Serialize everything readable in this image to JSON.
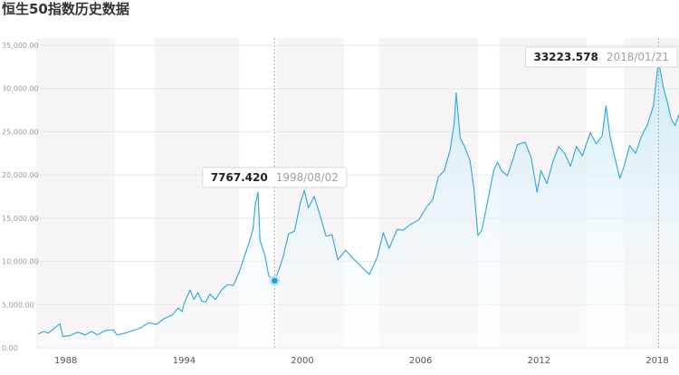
{
  "chart_data": {
    "type": "area",
    "title": "恒生50指数历史数据",
    "xlabel": "",
    "ylabel": "",
    "ylim": [
      0,
      35000
    ],
    "xlim": [
      1986.5,
      2019.1
    ],
    "y_ticks": [
      "0.00",
      "5,000.00",
      "10,000.00",
      "15,000.00",
      "20,000.00",
      "25,000.00",
      "30,000.00",
      "35,000.00"
    ],
    "y_tick_values": [
      0,
      5000,
      10000,
      15000,
      20000,
      25000,
      30000,
      35000
    ],
    "x_ticks": [
      "1988",
      "1994",
      "2000",
      "2006",
      "2012",
      "2018"
    ],
    "x_tick_values": [
      1988,
      1994,
      2000,
      2006,
      2012,
      2018
    ],
    "shaded_bands": [
      [
        1986.5,
        1990.5
      ],
      [
        1992.5,
        1996.8
      ],
      [
        1998.7,
        2002.1
      ],
      [
        2003.9,
        2008.9
      ],
      [
        2010.0,
        2014.4
      ],
      [
        2016.3,
        2019.1
      ]
    ],
    "series": [
      {
        "name": "恒生50指数",
        "points": [
          [
            1986.6,
            1600
          ],
          [
            1986.9,
            1900
          ],
          [
            1987.1,
            1700
          ],
          [
            1987.4,
            2200
          ],
          [
            1987.7,
            2800
          ],
          [
            1987.85,
            1300
          ],
          [
            1988.2,
            1400
          ],
          [
            1988.6,
            1800
          ],
          [
            1989.0,
            1500
          ],
          [
            1989.3,
            1900
          ],
          [
            1989.6,
            1500
          ],
          [
            1990.0,
            2000
          ],
          [
            1990.4,
            2100
          ],
          [
            1990.6,
            1500
          ],
          [
            1991.0,
            1700
          ],
          [
            1991.4,
            2000
          ],
          [
            1991.8,
            2300
          ],
          [
            1992.2,
            2900
          ],
          [
            1992.6,
            2700
          ],
          [
            1993.0,
            3400
          ],
          [
            1993.4,
            3800
          ],
          [
            1993.7,
            4600
          ],
          [
            1993.9,
            4200
          ],
          [
            1994.0,
            5100
          ],
          [
            1994.3,
            6700
          ],
          [
            1994.5,
            5600
          ],
          [
            1994.7,
            6400
          ],
          [
            1994.9,
            5400
          ],
          [
            1995.1,
            5300
          ],
          [
            1995.3,
            6200
          ],
          [
            1995.6,
            5600
          ],
          [
            1995.9,
            6700
          ],
          [
            1996.2,
            7300
          ],
          [
            1996.5,
            7200
          ],
          [
            1996.8,
            8800
          ],
          [
            1997.0,
            10200
          ],
          [
            1997.3,
            12200
          ],
          [
            1997.5,
            13800
          ],
          [
            1997.6,
            16400
          ],
          [
            1997.75,
            18000
          ],
          [
            1997.85,
            12400
          ],
          [
            1998.1,
            10700
          ],
          [
            1998.3,
            8300
          ],
          [
            1998.59,
            7767.42
          ],
          [
            1998.8,
            9000
          ],
          [
            1999.0,
            10300
          ],
          [
            1999.3,
            13200
          ],
          [
            1999.6,
            13500
          ],
          [
            1999.9,
            16800
          ],
          [
            2000.1,
            18200
          ],
          [
            2000.3,
            16200
          ],
          [
            2000.6,
            17500
          ],
          [
            2000.9,
            15300
          ],
          [
            2001.2,
            12900
          ],
          [
            2001.5,
            13100
          ],
          [
            2001.8,
            10200
          ],
          [
            2002.2,
            11300
          ],
          [
            2002.5,
            10500
          ],
          [
            2002.9,
            9600
          ],
          [
            2003.2,
            8900
          ],
          [
            2003.4,
            8500
          ],
          [
            2003.8,
            10500
          ],
          [
            2004.1,
            13300
          ],
          [
            2004.4,
            11500
          ],
          [
            2004.8,
            13700
          ],
          [
            2005.1,
            13600
          ],
          [
            2005.5,
            14300
          ],
          [
            2005.9,
            14800
          ],
          [
            2006.3,
            16300
          ],
          [
            2006.6,
            17100
          ],
          [
            2006.9,
            19800
          ],
          [
            2007.2,
            20500
          ],
          [
            2007.5,
            23000
          ],
          [
            2007.7,
            26000
          ],
          [
            2007.8,
            29500
          ],
          [
            2008.0,
            24300
          ],
          [
            2008.2,
            23400
          ],
          [
            2008.5,
            21700
          ],
          [
            2008.7,
            18400
          ],
          [
            2008.9,
            13000
          ],
          [
            2009.1,
            13600
          ],
          [
            2009.4,
            17000
          ],
          [
            2009.7,
            20500
          ],
          [
            2009.9,
            21500
          ],
          [
            2010.1,
            20500
          ],
          [
            2010.4,
            19900
          ],
          [
            2010.7,
            22000
          ],
          [
            2010.9,
            23500
          ],
          [
            2011.3,
            23800
          ],
          [
            2011.6,
            22000
          ],
          [
            2011.9,
            18000
          ],
          [
            2012.1,
            20500
          ],
          [
            2012.4,
            19000
          ],
          [
            2012.7,
            21500
          ],
          [
            2013.0,
            23300
          ],
          [
            2013.3,
            22500
          ],
          [
            2013.6,
            21000
          ],
          [
            2013.9,
            23300
          ],
          [
            2014.2,
            22200
          ],
          [
            2014.6,
            24900
          ],
          [
            2014.9,
            23600
          ],
          [
            2015.2,
            24500
          ],
          [
            2015.4,
            28000
          ],
          [
            2015.6,
            24500
          ],
          [
            2015.9,
            21500
          ],
          [
            2016.1,
            19600
          ],
          [
            2016.3,
            20900
          ],
          [
            2016.6,
            23400
          ],
          [
            2016.9,
            22500
          ],
          [
            2017.2,
            24500
          ],
          [
            2017.5,
            25800
          ],
          [
            2017.8,
            28000
          ],
          [
            2018.06,
            33223.578
          ],
          [
            2018.3,
            30200
          ],
          [
            2018.5,
            28500
          ],
          [
            2018.7,
            26500
          ],
          [
            2018.9,
            25700
          ],
          [
            2019.1,
            27000
          ]
        ]
      }
    ],
    "tooltips": [
      {
        "value": "7767.420",
        "date": "1998/08/02",
        "x": 1998.59,
        "y": 7767.42
      },
      {
        "value": "33223.578",
        "date": "2018/01/21",
        "x": 2018.06,
        "y": 33223.578
      }
    ],
    "colors": {
      "line": "#2aa8d8",
      "area_top": "#cbe9f7",
      "band": "#f7f4f5",
      "marker": "#1e9ee0",
      "grid": "#e6e6e6"
    }
  }
}
